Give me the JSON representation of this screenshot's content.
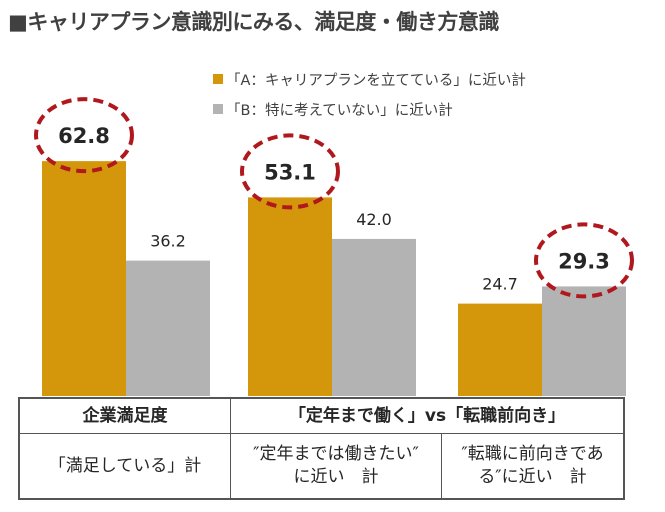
{
  "title": "■キャリアプラン意識別にみる、満足度・働き方意識",
  "colors": {
    "A": "#d4960a",
    "B": "#b3b3b3",
    "highlight": "#b0181e"
  },
  "chart_data": {
    "type": "bar",
    "ylim": [
      0,
      70
    ],
    "grid": false,
    "legend_position": "top-center",
    "categories": [
      "「満足している」計",
      "″定年までは働きたい″に近い　計",
      "″転職に前向きである″に近い　計"
    ],
    "series": [
      {
        "name": "「A：キャリアプランを立てている」に近い計",
        "values": [
          62.8,
          53.1,
          24.7
        ],
        "labels": [
          "62.8",
          "53.1",
          "24.7"
        ]
      },
      {
        "name": "「B：特に考えていない」に近い計",
        "values": [
          36.2,
          42.0,
          29.3
        ],
        "labels": [
          "36.2",
          "42.0",
          "29.3"
        ]
      }
    ],
    "highlighted": [
      "62.8",
      "53.1",
      "29.3"
    ]
  },
  "table": {
    "group1": "企業満足度",
    "group2": "「定年まで働く」vs「転職前向き」",
    "cat1": "「満足している」計",
    "cat2_line1": "″定年までは働きたい″",
    "cat2_line2": "に近い　計",
    "cat3_line1": "″転職に前向きであ",
    "cat3_line2": "る″に近い　計"
  }
}
